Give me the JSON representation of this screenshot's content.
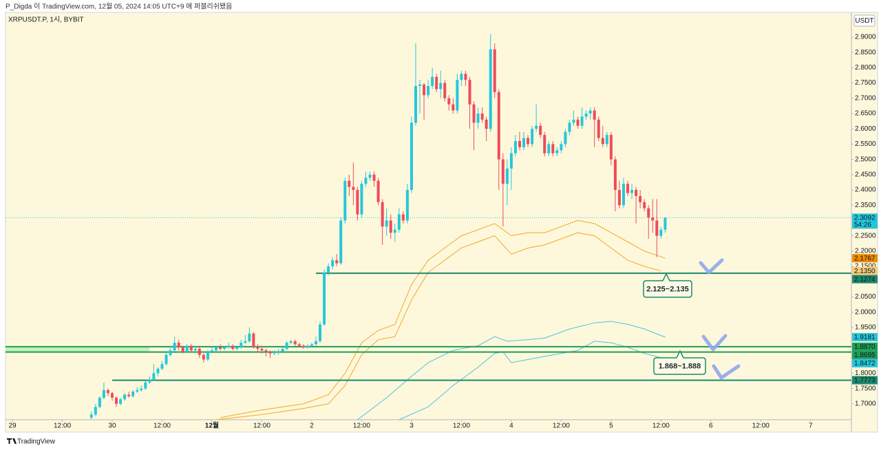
{
  "header": {
    "text": "P_Digda 이 TradingView.com, 12월 05, 2024 14:05 UTC+9 에 퍼블리쉬됐음"
  },
  "footer": {
    "brand": "TradingView"
  },
  "chart_data": {
    "type": "candlestick",
    "title": "XRPUSDT.P, 1시, BYBIT",
    "currency": "USDT",
    "up_color": "#26c6da",
    "down_color": "#ef4b5a",
    "x": [
      19,
      20,
      21,
      22,
      23,
      24,
      25,
      26,
      27,
      28,
      29,
      30,
      31,
      32,
      33,
      34,
      35,
      36,
      37,
      38,
      39,
      40,
      41,
      42,
      43,
      44,
      45,
      46,
      47,
      48,
      49,
      50,
      51,
      52,
      53,
      54,
      55,
      56,
      57,
      58,
      59,
      60,
      61,
      62,
      63,
      64,
      65,
      66,
      67,
      68,
      69,
      70,
      71,
      72,
      73,
      74,
      75,
      76,
      77,
      78,
      79,
      80,
      81,
      82,
      83,
      84,
      85,
      86,
      87,
      88,
      89,
      90,
      91,
      92,
      93,
      94,
      95,
      96,
      97,
      98,
      99,
      100,
      101,
      102,
      103,
      104,
      105,
      106,
      107,
      108,
      109,
      110,
      111,
      112,
      113,
      114,
      115,
      116,
      117,
      118,
      119,
      120,
      121,
      122,
      123,
      124,
      125,
      126,
      127,
      128,
      129,
      130,
      131,
      132,
      133,
      134,
      135,
      136,
      137,
      138,
      139,
      140,
      141,
      142,
      143,
      144,
      145,
      146,
      147,
      148,
      149,
      150,
      151,
      152,
      153,
      154,
      155,
      156,
      157
    ],
    "open": [
      1.655,
      1.665,
      1.69,
      1.72,
      1.745,
      1.735,
      1.72,
      1.7,
      1.715,
      1.73,
      1.725,
      1.74,
      1.745,
      1.75,
      1.77,
      1.78,
      1.8,
      1.815,
      1.83,
      1.86,
      1.875,
      1.9,
      1.885,
      1.87,
      1.89,
      1.875,
      1.88,
      1.86,
      1.845,
      1.87,
      1.875,
      1.885,
      1.88,
      1.885,
      1.89,
      1.88,
      1.885,
      1.9,
      1.905,
      1.93,
      1.885,
      1.88,
      1.875,
      1.87,
      1.865,
      1.87,
      1.872,
      1.88,
      1.9,
      1.905,
      1.895,
      1.89,
      1.885,
      1.89,
      1.895,
      1.905,
      1.96,
      2.13,
      2.15,
      2.17,
      2.16,
      2.3,
      2.43,
      2.41,
      2.4,
      2.32,
      2.42,
      2.44,
      2.45,
      2.43,
      2.36,
      2.28,
      2.3,
      2.26,
      2.27,
      2.32,
      2.3,
      2.4,
      2.62,
      2.74,
      2.745,
      2.71,
      2.74,
      2.77,
      2.73,
      2.75,
      2.7,
      2.68,
      2.66,
      2.76,
      2.78,
      2.76,
      2.68,
      2.62,
      2.65,
      2.63,
      2.6,
      2.86,
      2.72,
      2.5,
      2.42,
      2.47,
      2.52,
      2.56,
      2.54,
      2.57,
      2.55,
      2.6,
      2.61,
      2.58,
      2.52,
      2.55,
      2.52,
      2.53,
      2.55,
      2.59,
      2.62,
      2.63,
      2.61,
      2.64,
      2.65,
      2.66,
      2.63,
      2.57,
      2.55,
      2.58,
      2.5,
      2.4,
      2.35,
      2.42,
      2.39,
      2.4,
      2.38,
      2.36,
      2.34,
      2.31,
      2.3,
      2.25,
      2.27
    ],
    "high": [
      1.675,
      1.7,
      1.725,
      1.77,
      1.75,
      1.74,
      1.725,
      1.72,
      1.735,
      1.74,
      1.745,
      1.755,
      1.76,
      1.775,
      1.79,
      1.83,
      1.82,
      1.84,
      1.87,
      1.89,
      1.92,
      1.91,
      1.89,
      1.895,
      1.895,
      1.89,
      1.885,
      1.865,
      1.875,
      1.885,
      1.89,
      1.895,
      1.89,
      1.9,
      1.895,
      1.89,
      1.91,
      1.925,
      1.95,
      1.935,
      1.895,
      1.89,
      1.88,
      1.875,
      1.875,
      1.88,
      1.885,
      1.905,
      1.91,
      1.91,
      1.9,
      1.895,
      1.895,
      1.9,
      1.92,
      1.97,
      2.14,
      2.16,
      2.18,
      2.19,
      2.31,
      2.44,
      2.45,
      2.49,
      2.41,
      2.43,
      2.46,
      2.46,
      2.46,
      2.44,
      2.37,
      2.34,
      2.32,
      2.29,
      2.34,
      2.33,
      2.42,
      2.64,
      2.88,
      2.76,
      2.75,
      2.76,
      2.8,
      2.78,
      2.79,
      2.76,
      2.71,
      2.7,
      2.78,
      2.79,
      2.79,
      2.77,
      2.69,
      2.67,
      2.67,
      2.64,
      2.91,
      2.88,
      2.73,
      2.52,
      2.5,
      2.54,
      2.58,
      2.59,
      2.59,
      2.58,
      2.61,
      2.68,
      2.62,
      2.59,
      2.56,
      2.56,
      2.54,
      2.56,
      2.6,
      2.63,
      2.66,
      2.64,
      2.67,
      2.66,
      2.67,
      2.67,
      2.64,
      2.61,
      2.59,
      2.59,
      2.51,
      2.43,
      2.44,
      2.43,
      2.42,
      2.41,
      2.4,
      2.37,
      2.35,
      2.37,
      2.37,
      2.28,
      2.31
    ],
    "low": [
      1.65,
      1.66,
      1.685,
      1.715,
      1.725,
      1.71,
      1.69,
      1.695,
      1.71,
      1.72,
      1.72,
      1.735,
      1.74,
      1.745,
      1.765,
      1.775,
      1.79,
      1.81,
      1.825,
      1.855,
      1.87,
      1.875,
      1.865,
      1.865,
      1.87,
      1.87,
      1.85,
      1.835,
      1.84,
      1.865,
      1.87,
      1.875,
      1.875,
      1.88,
      1.875,
      1.875,
      1.88,
      1.895,
      1.9,
      1.88,
      1.87,
      1.865,
      1.855,
      1.85,
      1.86,
      1.86,
      1.865,
      1.875,
      1.895,
      1.89,
      1.885,
      1.88,
      1.88,
      1.885,
      1.89,
      1.9,
      1.955,
      2.12,
      2.14,
      2.15,
      2.155,
      2.29,
      2.38,
      2.35,
      2.3,
      2.31,
      2.41,
      2.43,
      2.41,
      2.35,
      2.22,
      2.25,
      2.24,
      2.23,
      2.26,
      2.29,
      2.29,
      2.39,
      2.61,
      2.65,
      2.63,
      2.7,
      2.73,
      2.72,
      2.7,
      2.69,
      2.66,
      2.65,
      2.65,
      2.74,
      2.74,
      2.6,
      2.53,
      2.6,
      2.62,
      2.56,
      2.59,
      2.7,
      2.4,
      2.28,
      2.35,
      2.4,
      2.51,
      2.53,
      2.53,
      2.54,
      2.54,
      2.59,
      2.57,
      2.51,
      2.51,
      2.51,
      2.51,
      2.52,
      2.54,
      2.58,
      2.61,
      2.6,
      2.6,
      2.63,
      2.63,
      2.54,
      2.56,
      2.54,
      2.54,
      2.48,
      2.33,
      2.34,
      2.34,
      2.38,
      2.37,
      2.29,
      2.34,
      2.33,
      2.24,
      2.26,
      2.18,
      2.24,
      2.26
    ],
    "close": [
      1.665,
      1.69,
      1.72,
      1.745,
      1.735,
      1.72,
      1.7,
      1.715,
      1.73,
      1.725,
      1.74,
      1.745,
      1.75,
      1.77,
      1.78,
      1.8,
      1.815,
      1.83,
      1.86,
      1.875,
      1.9,
      1.885,
      1.87,
      1.89,
      1.875,
      1.88,
      1.86,
      1.845,
      1.87,
      1.875,
      1.885,
      1.88,
      1.885,
      1.89,
      1.88,
      1.885,
      1.9,
      1.905,
      1.93,
      1.885,
      1.88,
      1.875,
      1.87,
      1.865,
      1.87,
      1.872,
      1.88,
      1.9,
      1.905,
      1.895,
      1.89,
      1.885,
      1.89,
      1.895,
      1.905,
      1.96,
      2.13,
      2.15,
      2.17,
      2.16,
      2.3,
      2.43,
      2.41,
      2.4,
      2.32,
      2.42,
      2.44,
      2.45,
      2.43,
      2.36,
      2.28,
      2.3,
      2.26,
      2.27,
      2.32,
      2.3,
      2.4,
      2.62,
      2.74,
      2.745,
      2.71,
      2.74,
      2.77,
      2.73,
      2.75,
      2.7,
      2.68,
      2.66,
      2.76,
      2.78,
      2.76,
      2.68,
      2.62,
      2.65,
      2.63,
      2.6,
      2.86,
      2.72,
      2.5,
      2.42,
      2.47,
      2.52,
      2.56,
      2.54,
      2.57,
      2.55,
      2.6,
      2.61,
      2.58,
      2.52,
      2.55,
      2.52,
      2.53,
      2.55,
      2.59,
      2.62,
      2.63,
      2.61,
      2.64,
      2.65,
      2.66,
      2.63,
      2.57,
      2.55,
      2.58,
      2.5,
      2.4,
      2.35,
      2.42,
      2.39,
      2.4,
      2.38,
      2.36,
      2.34,
      2.31,
      2.3,
      2.25,
      2.27,
      2.3092
    ],
    "xlim": [
      -1.66,
      201.8
    ],
    "xticks": [
      {
        "value": 0,
        "label": "29"
      },
      {
        "value": 12,
        "label": "12:00"
      },
      {
        "value": 24,
        "label": "30"
      },
      {
        "value": 36,
        "label": "12:00"
      },
      {
        "value": 48,
        "label": "12월"
      },
      {
        "value": 60,
        "label": "12:00"
      },
      {
        "value": 72,
        "label": "2"
      },
      {
        "value": 84,
        "label": "12:00"
      },
      {
        "value": 96,
        "label": "3"
      },
      {
        "value": 108,
        "label": "12:00"
      },
      {
        "value": 120,
        "label": "4"
      },
      {
        "value": 132,
        "label": "12:00"
      },
      {
        "value": 144,
        "label": "5"
      },
      {
        "value": 156,
        "label": "12:00"
      },
      {
        "value": 168,
        "label": "6"
      },
      {
        "value": 180,
        "label": "12:00"
      },
      {
        "value": 192,
        "label": "7"
      }
    ],
    "ylim": [
      1.648,
      2.981
    ],
    "yticks": [
      {
        "value": 2.9,
        "label": "2.9000"
      },
      {
        "value": 2.85,
        "label": "2.8500"
      },
      {
        "value": 2.8,
        "label": "2.8000"
      },
      {
        "value": 2.75,
        "label": "2.7500"
      },
      {
        "value": 2.7,
        "label": "2.7000"
      },
      {
        "value": 2.65,
        "label": "2.6500"
      },
      {
        "value": 2.6,
        "label": "2.6000"
      },
      {
        "value": 2.55,
        "label": "2.5500"
      },
      {
        "value": 2.5,
        "label": "2.5000"
      },
      {
        "value": 2.45,
        "label": "2.4500"
      },
      {
        "value": 2.4,
        "label": "2.4000"
      },
      {
        "value": 2.35,
        "label": "2.3500"
      },
      {
        "value": 2.25,
        "label": "2.2500"
      },
      {
        "value": 2.2,
        "label": "2.2000"
      },
      {
        "value": 2.15,
        "label": "2.1500"
      },
      {
        "value": 2.05,
        "label": "2.0500"
      },
      {
        "value": 2.0,
        "label": "2.0000"
      },
      {
        "value": 1.95,
        "label": "1.9500"
      },
      {
        "value": 1.8,
        "label": "1.8000"
      },
      {
        "value": 1.75,
        "label": "1.7500"
      },
      {
        "value": 1.7,
        "label": "1.7000"
      }
    ],
    "lines": [
      {
        "color": "#f5a623",
        "x": [
          50,
          60,
          70,
          76,
          80,
          84,
          88,
          92,
          96,
          100,
          104,
          108,
          112,
          116,
          120,
          124,
          128,
          132,
          136,
          140,
          144,
          148,
          152,
          157
        ],
        "values": [
          1.655,
          1.68,
          1.7,
          1.73,
          1.8,
          1.9,
          1.94,
          1.96,
          2.09,
          2.17,
          2.21,
          2.25,
          2.27,
          2.29,
          2.25,
          2.26,
          2.26,
          2.28,
          2.3,
          2.29,
          2.26,
          2.23,
          2.2,
          2.1767
        ]
      },
      {
        "color": "#f5a623",
        "x": [
          49,
          60,
          70,
          76,
          80,
          84,
          88,
          92,
          96,
          100,
          104,
          108,
          112,
          116,
          120,
          124,
          128,
          132,
          136,
          140,
          144,
          148,
          152,
          156
        ],
        "values": [
          1.648,
          1.665,
          1.685,
          1.7,
          1.76,
          1.86,
          1.91,
          1.92,
          2.04,
          2.13,
          2.17,
          2.21,
          2.23,
          2.25,
          2.19,
          2.21,
          2.22,
          2.24,
          2.26,
          2.25,
          2.21,
          2.17,
          2.15,
          2.135
        ]
      },
      {
        "color": "#4fc3d9",
        "x": [
          83,
          90,
          96,
          100,
          106,
          112,
          116,
          119,
          124,
          128,
          134,
          140,
          144,
          148,
          152,
          157
        ],
        "values": [
          1.648,
          1.72,
          1.79,
          1.835,
          1.875,
          1.89,
          1.92,
          1.905,
          1.91,
          1.915,
          1.945,
          1.965,
          1.97,
          1.96,
          1.945,
          1.9181
        ]
      },
      {
        "color": "#4fc3d9",
        "x": [
          93,
          100,
          106,
          112,
          116,
          118,
          120,
          124,
          130,
          136,
          140,
          144,
          148,
          152,
          157
        ],
        "values": [
          1.648,
          1.69,
          1.76,
          1.82,
          1.865,
          1.87,
          1.835,
          1.845,
          1.86,
          1.875,
          1.905,
          1.9,
          1.885,
          1.865,
          1.8472
        ]
      }
    ],
    "zone": {
      "low": 1.8695,
      "high": 1.887,
      "start": -1.66,
      "end": 33,
      "color": "#c6efb8"
    },
    "levels": [
      {
        "value": 2.1274,
        "label": "2.1274",
        "start": 73,
        "color": "#1b8a6c"
      },
      {
        "value": 1.887,
        "label": "1.8870",
        "start": -1.66,
        "color": "#1f9d57"
      },
      {
        "value": 1.8695,
        "label": "1.8695",
        "start": -1.66,
        "color": "#1f9d57"
      },
      {
        "value": 1.7773,
        "label": "1.7773",
        "start": 24,
        "color": "#1b8a6c"
      }
    ],
    "price_labels": [
      {
        "value": 2.3092,
        "label": "2.3092",
        "color": "#26c6da",
        "countdown": "54:26"
      },
      {
        "value": 2.1767,
        "label": "2.1767",
        "color": "#f08c00"
      },
      {
        "value": 2.135,
        "label": "2.1350",
        "color": "#f7c97a"
      },
      {
        "value": 1.9181,
        "label": "1.9181",
        "color": "#26c6da"
      },
      {
        "value": 1.8472,
        "label": "1.8472",
        "color": "#26c6da"
      }
    ],
    "annotations": [
      {
        "text": "2.125~2.135"
      },
      {
        "text": "1.868~1.888"
      }
    ]
  }
}
